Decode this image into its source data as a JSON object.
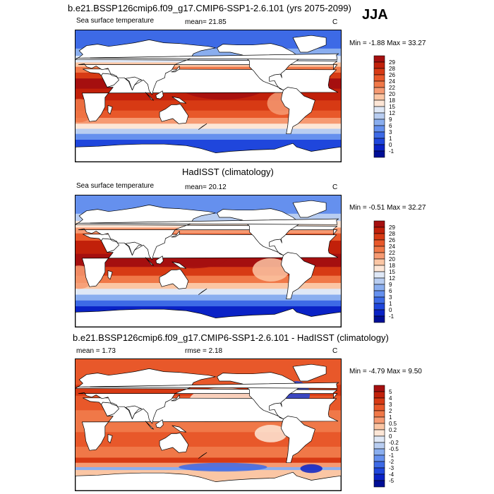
{
  "season": "JJA",
  "panels": [
    {
      "title": "b.e21.BSSP126cmip6.f09_g17.CMIP6-SSP1-2.6.101 (yrs 2075-2099)",
      "left_label": "Sea surface temperature",
      "center_label": "mean=  21.85",
      "units": "C",
      "minmax": "Min =  -1.88 Max =  33.27",
      "legend_labels": [
        "29",
        "28",
        "26",
        "24",
        "22",
        "20",
        "18",
        "15",
        "12",
        "9",
        "6",
        "3",
        "1",
        "0",
        "-1"
      ],
      "colors": [
        "#a50f0f",
        "#c1200a",
        "#d73a14",
        "#e8582a",
        "#f07848",
        "#f69a72",
        "#fbc6a4",
        "#fde6d6",
        "#dfe8f6",
        "#b8cdf1",
        "#8aaeef",
        "#6590ee",
        "#3d6ae6",
        "#1f46dc",
        "#0a22c6",
        "#000e96"
      ]
    },
    {
      "title": "HadISST (climatology)",
      "left_label": "Sea surface temperature",
      "center_label": "mean=  20.12",
      "units": "C",
      "minmax": "Min =  -0.51 Max =  32.27",
      "legend_labels": [
        "29",
        "28",
        "26",
        "24",
        "22",
        "20",
        "18",
        "15",
        "12",
        "9",
        "6",
        "3",
        "1",
        "0",
        "-1"
      ],
      "colors": [
        "#a50f0f",
        "#c1200a",
        "#d73a14",
        "#e8582a",
        "#f07848",
        "#f69a72",
        "#fbc6a4",
        "#fde6d6",
        "#dfe8f6",
        "#b8cdf1",
        "#8aaeef",
        "#6590ee",
        "#3d6ae6",
        "#1f46dc",
        "#0a22c6",
        "#000e96"
      ]
    },
    {
      "title": "b.e21.BSSP126cmip6.f09_g17.CMIP6-SSP1-2.6.101 - HadISST (climatology)",
      "left_label": "mean =   1.73",
      "center_label": "rmse =   2.18",
      "units": "C",
      "minmax": "Min =  -4.79 Max =   9.50",
      "legend_labels": [
        "5",
        "4",
        "3",
        "2",
        "1",
        "0.5",
        "0.2",
        "0",
        "-0.2",
        "-0.5",
        "-1",
        "-2",
        "-3",
        "-4",
        "-5"
      ],
      "colors": [
        "#a50f0f",
        "#c1200a",
        "#d73a14",
        "#e8582a",
        "#f07848",
        "#f69a72",
        "#fbc6a4",
        "#fde6d6",
        "#dfe8f6",
        "#b8cdf1",
        "#8aaeef",
        "#6590ee",
        "#3d6ae6",
        "#1f46dc",
        "#0a22c6",
        "#000e96"
      ]
    }
  ]
}
